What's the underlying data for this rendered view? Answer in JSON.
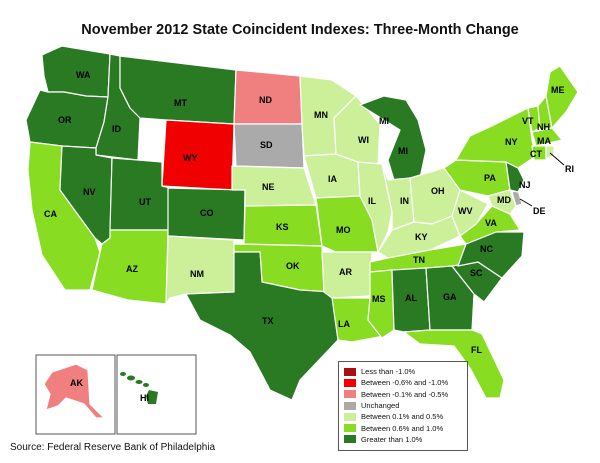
{
  "title": "November 2012 State Coincident Indexes: Three-Month Change",
  "source": "Source: Federal Reserve Bank of Philadelphia",
  "colors": {
    "less_than_neg1": "#a50f15",
    "neg06_to_neg1": "#f00000",
    "neg01_to_neg05": "#f08080",
    "unchanged": "#aaaaaa",
    "pos01_to_05": "#ccf09a",
    "pos06_to_1": "#88dd22",
    "greater_than_1": "#2a7a24"
  },
  "legend": [
    {
      "key": "less_than_neg1",
      "label": "Less than -1.0%"
    },
    {
      "key": "neg06_to_neg1",
      "label": "Between -0.6% and -1.0%"
    },
    {
      "key": "neg01_to_neg05",
      "label": "Between -0.1% and -0.5%"
    },
    {
      "key": "unchanged",
      "label": "Unchanged"
    },
    {
      "key": "pos01_to_05",
      "label": "Between 0.1% and 0.5%"
    },
    {
      "key": "pos06_to_1",
      "label": "Between 0.6% and 1.0%"
    },
    {
      "key": "greater_than_1",
      "label": "Greater than 1.0%"
    }
  ],
  "states": {
    "WA": "greater_than_1",
    "OR": "greater_than_1",
    "CA": "pos06_to_1",
    "ID": "greater_than_1",
    "NV": "greater_than_1",
    "MT": "greater_than_1",
    "WY": "neg06_to_neg1",
    "UT": "greater_than_1",
    "AZ": "pos06_to_1",
    "CO": "greater_than_1",
    "NM": "pos01_to_05",
    "ND": "neg01_to_neg05",
    "SD": "unchanged",
    "NE": "pos01_to_05",
    "KS": "pos06_to_1",
    "OK": "pos06_to_1",
    "TX": "greater_than_1",
    "MN": "pos01_to_05",
    "IA": "pos01_to_05",
    "MO": "pos06_to_1",
    "AR": "pos01_to_05",
    "LA": "pos06_to_1",
    "WI": "pos01_to_05",
    "IL": "pos01_to_05",
    "MI": "greater_than_1",
    "IN": "pos01_to_05",
    "OH": "pos01_to_05",
    "KY": "pos01_to_05",
    "TN": "pos06_to_1",
    "MS": "pos06_to_1",
    "AL": "greater_than_1",
    "GA": "greater_than_1",
    "FL": "pos06_to_1",
    "SC": "greater_than_1",
    "NC": "greater_than_1",
    "VA": "pos06_to_1",
    "WV": "pos01_to_05",
    "PA": "pos06_to_1",
    "NY": "pos06_to_1",
    "VT": "pos06_to_1",
    "NH": "pos06_to_1",
    "ME": "pos06_to_1",
    "MA": "pos06_to_1",
    "CT": "pos06_to_1",
    "RI": "pos01_to_05",
    "NJ": "greater_than_1",
    "DE": "unchanged",
    "MD": "pos01_to_05",
    "AK": "neg01_to_neg05",
    "HI": "greater_than_1"
  }
}
